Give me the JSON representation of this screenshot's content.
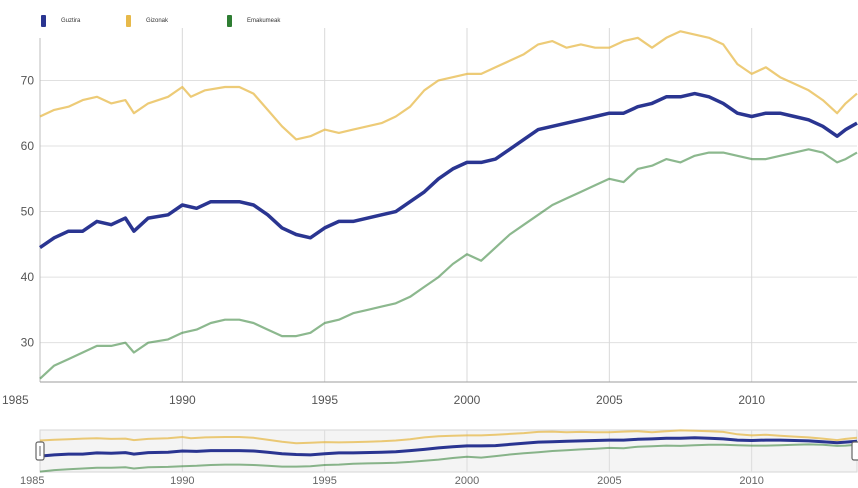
{
  "legend": {
    "items": [
      {
        "label": "Guztira",
        "color": "#2a3591"
      },
      {
        "label": "Gizonak",
        "color": "#e7b94a"
      },
      {
        "label": "Emakumeak",
        "color": "#2e7d32"
      }
    ]
  },
  "chart_data": {
    "type": "line",
    "title": "",
    "xlabel": "",
    "ylabel": "",
    "xlim": [
      1985,
      2013.7
    ],
    "ylim": [
      24,
      78
    ],
    "x_ticks": [
      1985,
      1990,
      1995,
      2000,
      2005,
      2010
    ],
    "y_ticks": [
      30,
      40,
      50,
      60,
      70
    ],
    "grid": true,
    "legend_position": "top-left",
    "series": [
      {
        "name": "Guztira",
        "color": "#2a3591",
        "points": [
          [
            1985,
            44.5
          ],
          [
            1985.5,
            46
          ],
          [
            1986,
            47
          ],
          [
            1986.5,
            47
          ],
          [
            1987,
            48.5
          ],
          [
            1987.5,
            48
          ],
          [
            1988,
            49
          ],
          [
            1988.3,
            47
          ],
          [
            1988.8,
            49
          ],
          [
            1989.5,
            49.5
          ],
          [
            1990,
            51
          ],
          [
            1990.5,
            50.5
          ],
          [
            1991,
            51.5
          ],
          [
            1992,
            51.5
          ],
          [
            1992.5,
            51
          ],
          [
            1993,
            49.5
          ],
          [
            1993.5,
            47.5
          ],
          [
            1994,
            46.5
          ],
          [
            1994.5,
            46
          ],
          [
            1995,
            47.5
          ],
          [
            1995.5,
            48.5
          ],
          [
            1996,
            48.5
          ],
          [
            1997,
            49.5
          ],
          [
            1997.5,
            50
          ],
          [
            1998,
            51.5
          ],
          [
            1998.5,
            53
          ],
          [
            1999,
            55
          ],
          [
            1999.5,
            56.5
          ],
          [
            2000,
            57.5
          ],
          [
            2000.5,
            57.5
          ],
          [
            2001,
            58
          ],
          [
            2001.5,
            59.5
          ],
          [
            2002,
            61
          ],
          [
            2002.5,
            62.5
          ],
          [
            2003,
            63
          ],
          [
            2003.5,
            63.5
          ],
          [
            2004,
            64
          ],
          [
            2004.5,
            64.5
          ],
          [
            2005,
            65
          ],
          [
            2005.5,
            65
          ],
          [
            2006,
            66
          ],
          [
            2006.5,
            66.5
          ],
          [
            2007,
            67.5
          ],
          [
            2007.5,
            67.5
          ],
          [
            2008,
            68
          ],
          [
            2008.5,
            67.5
          ],
          [
            2009,
            66.5
          ],
          [
            2009.5,
            65
          ],
          [
            2010,
            64.5
          ],
          [
            2010.5,
            65
          ],
          [
            2011,
            65
          ],
          [
            2011.5,
            64.5
          ],
          [
            2012,
            64
          ],
          [
            2012.5,
            63
          ],
          [
            2013,
            61.5
          ],
          [
            2013.3,
            62.5
          ],
          [
            2013.7,
            63.5
          ]
        ]
      },
      {
        "name": "Gizonak",
        "color": "#e7b94a",
        "points": [
          [
            1985,
            64.5
          ],
          [
            1985.5,
            65.5
          ],
          [
            1986,
            66
          ],
          [
            1986.5,
            67
          ],
          [
            1987,
            67.5
          ],
          [
            1987.5,
            66.5
          ],
          [
            1988,
            67
          ],
          [
            1988.3,
            65
          ],
          [
            1988.8,
            66.5
          ],
          [
            1989.5,
            67.5
          ],
          [
            1990,
            69
          ],
          [
            1990.3,
            67.5
          ],
          [
            1990.8,
            68.5
          ],
          [
            1991.5,
            69
          ],
          [
            1992,
            69
          ],
          [
            1992.5,
            68
          ],
          [
            1993,
            65.5
          ],
          [
            1993.5,
            63
          ],
          [
            1994,
            61
          ],
          [
            1994.5,
            61.5
          ],
          [
            1995,
            62.5
          ],
          [
            1995.5,
            62
          ],
          [
            1996,
            62.5
          ],
          [
            1996.5,
            63
          ],
          [
            1997,
            63.5
          ],
          [
            1997.5,
            64.5
          ],
          [
            1998,
            66
          ],
          [
            1998.5,
            68.5
          ],
          [
            1999,
            70
          ],
          [
            1999.5,
            70.5
          ],
          [
            2000,
            71
          ],
          [
            2000.5,
            71
          ],
          [
            2001,
            72
          ],
          [
            2001.5,
            73
          ],
          [
            2002,
            74
          ],
          [
            2002.5,
            75.5
          ],
          [
            2003,
            76
          ],
          [
            2003.5,
            75
          ],
          [
            2004,
            75.5
          ],
          [
            2004.5,
            75
          ],
          [
            2005,
            75
          ],
          [
            2005.5,
            76
          ],
          [
            2006,
            76.5
          ],
          [
            2006.5,
            75
          ],
          [
            2007,
            76.5
          ],
          [
            2007.5,
            77.5
          ],
          [
            2008,
            77
          ],
          [
            2008.5,
            76.5
          ],
          [
            2009,
            75.5
          ],
          [
            2009.5,
            72.5
          ],
          [
            2010,
            71
          ],
          [
            2010.5,
            72
          ],
          [
            2011,
            70.5
          ],
          [
            2011.5,
            69.5
          ],
          [
            2012,
            68.5
          ],
          [
            2012.5,
            67
          ],
          [
            2013,
            65
          ],
          [
            2013.3,
            66.5
          ],
          [
            2013.7,
            68
          ]
        ]
      },
      {
        "name": "Emakumeak",
        "color": "#2e7d32",
        "points": [
          [
            1985,
            24.5
          ],
          [
            1985.5,
            26.5
          ],
          [
            1986,
            27.5
          ],
          [
            1986.5,
            28.5
          ],
          [
            1987,
            29.5
          ],
          [
            1987.5,
            29.5
          ],
          [
            1988,
            30
          ],
          [
            1988.3,
            28.5
          ],
          [
            1988.8,
            30
          ],
          [
            1989.5,
            30.5
          ],
          [
            1990,
            31.5
          ],
          [
            1990.5,
            32
          ],
          [
            1991,
            33
          ],
          [
            1991.5,
            33.5
          ],
          [
            1992,
            33.5
          ],
          [
            1992.5,
            33
          ],
          [
            1993,
            32
          ],
          [
            1993.5,
            31
          ],
          [
            1994,
            31
          ],
          [
            1994.5,
            31.5
          ],
          [
            1995,
            33
          ],
          [
            1995.5,
            33.5
          ],
          [
            1996,
            34.5
          ],
          [
            1996.5,
            35
          ],
          [
            1997,
            35.5
          ],
          [
            1997.5,
            36
          ],
          [
            1998,
            37
          ],
          [
            1998.5,
            38.5
          ],
          [
            1999,
            40
          ],
          [
            1999.5,
            42
          ],
          [
            2000,
            43.5
          ],
          [
            2000.5,
            42.5
          ],
          [
            2001,
            44.5
          ],
          [
            2001.5,
            46.5
          ],
          [
            2002,
            48
          ],
          [
            2002.5,
            49.5
          ],
          [
            2003,
            51
          ],
          [
            2003.5,
            52
          ],
          [
            2004,
            53
          ],
          [
            2004.5,
            54
          ],
          [
            2005,
            55
          ],
          [
            2005.5,
            54.5
          ],
          [
            2006,
            56.5
          ],
          [
            2006.5,
            57
          ],
          [
            2007,
            58
          ],
          [
            2007.5,
            57.5
          ],
          [
            2008,
            58.5
          ],
          [
            2008.5,
            59
          ],
          [
            2009,
            59
          ],
          [
            2009.5,
            58.5
          ],
          [
            2010,
            58
          ],
          [
            2010.5,
            58
          ],
          [
            2011,
            58.5
          ],
          [
            2011.5,
            59
          ],
          [
            2012,
            59.5
          ],
          [
            2012.5,
            59
          ],
          [
            2013,
            57.5
          ],
          [
            2013.3,
            58
          ],
          [
            2013.7,
            59
          ]
        ]
      }
    ]
  }
}
